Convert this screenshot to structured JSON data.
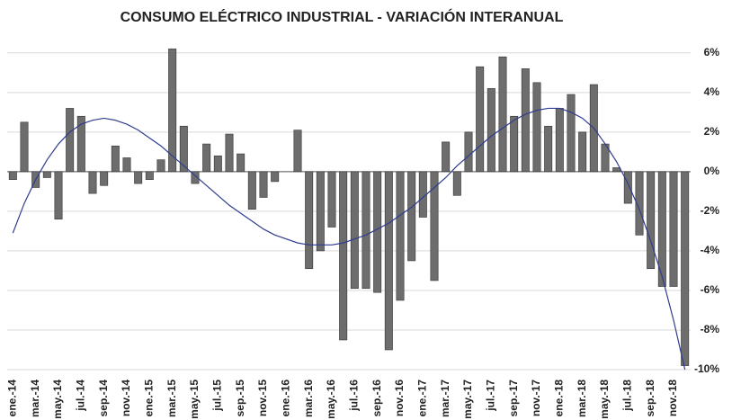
{
  "chart_data": {
    "type": "bar",
    "title": "CONSUMO ELÉCTRICO INDUSTRIAL - VARIACIÓN INTERANUAL",
    "categories": [
      "ene.-14",
      null,
      "mar.-14",
      null,
      "may.-14",
      null,
      "jul.-14",
      null,
      "sep.-14",
      null,
      "nov.-14",
      null,
      "ene.-15",
      null,
      "mar.-15",
      null,
      "may.-15",
      null,
      "jul.-15",
      null,
      "sep.-15",
      null,
      "nov.-15",
      null,
      "ene.-16",
      null,
      "mar.-16",
      null,
      "may.-16",
      null,
      "jul.-16",
      null,
      "sep.-16",
      null,
      "nov.-16",
      null,
      "ene.-17",
      null,
      "mar.-17",
      null,
      "may.-17",
      null,
      "jul.-17",
      null,
      "sep.-17",
      null,
      "nov.-17",
      null,
      "ene.-18",
      null,
      "mar.-18",
      null,
      "may.-18",
      null,
      "jul.-18",
      null,
      "sep.-18",
      null,
      "nov.-18",
      null
    ],
    "series": [
      {
        "type": "bar",
        "color": "#6d6d6d",
        "values": [
          -0.4,
          2.5,
          -0.8,
          -0.3,
          -2.4,
          3.2,
          2.8,
          -1.1,
          -0.7,
          1.3,
          0.7,
          -0.6,
          -0.4,
          0.6,
          6.2,
          2.3,
          -0.6,
          1.4,
          0.8,
          1.9,
          0.9,
          -1.9,
          -1.3,
          -0.5,
          0,
          2.1,
          -4.9,
          -4.0,
          -2.8,
          -8.5,
          -5.9,
          -5.9,
          -6.1,
          -9.0,
          -6.5,
          -4.5,
          -2.3,
          -5.5,
          1.5,
          -1.2,
          2.0,
          5.3,
          4.2,
          5.8,
          2.8,
          5.2,
          4.5,
          2.3,
          3.2,
          3.9,
          2.0,
          4.4,
          1.4,
          0.2,
          -1.6,
          -3.2,
          -4.9,
          -5.8,
          -5.8,
          -9.8
        ]
      },
      {
        "type": "line",
        "color": "#2f3d8f",
        "values": [
          -3.1,
          -1.6,
          -0.4,
          0.6,
          1.4,
          2.0,
          2.4,
          2.6,
          2.7,
          2.6,
          2.4,
          2.1,
          1.7,
          1.3,
          0.8,
          0.3,
          -0.2,
          -0.7,
          -1.2,
          -1.7,
          -2.1,
          -2.5,
          -2.9,
          -3.2,
          -3.4,
          -3.6,
          -3.7,
          -3.7,
          -3.7,
          -3.6,
          -3.4,
          -3.2,
          -2.9,
          -2.6,
          -2.2,
          -1.8,
          -1.3,
          -0.8,
          -0.3,
          0.3,
          0.8,
          1.3,
          1.8,
          2.2,
          2.6,
          2.9,
          3.1,
          3.2,
          3.2,
          3.0,
          2.7,
          2.2,
          1.4,
          0.5,
          -0.6,
          -1.9,
          -3.5,
          -5.3,
          -7.5,
          -10.0
        ]
      }
    ],
    "ylim": [
      -10,
      6.4
    ],
    "yticks": [
      {
        "value": -10,
        "label": "-10%"
      },
      {
        "value": -8,
        "label": "-8%"
      },
      {
        "value": -6,
        "label": "-6%"
      },
      {
        "value": -4,
        "label": "-4%"
      },
      {
        "value": -2,
        "label": "-2%"
      },
      {
        "value": 0,
        "label": "0%"
      },
      {
        "value": 2,
        "label": "2%"
      },
      {
        "value": 4,
        "label": "4%"
      },
      {
        "value": 6,
        "label": "6%"
      }
    ],
    "grid": true
  }
}
